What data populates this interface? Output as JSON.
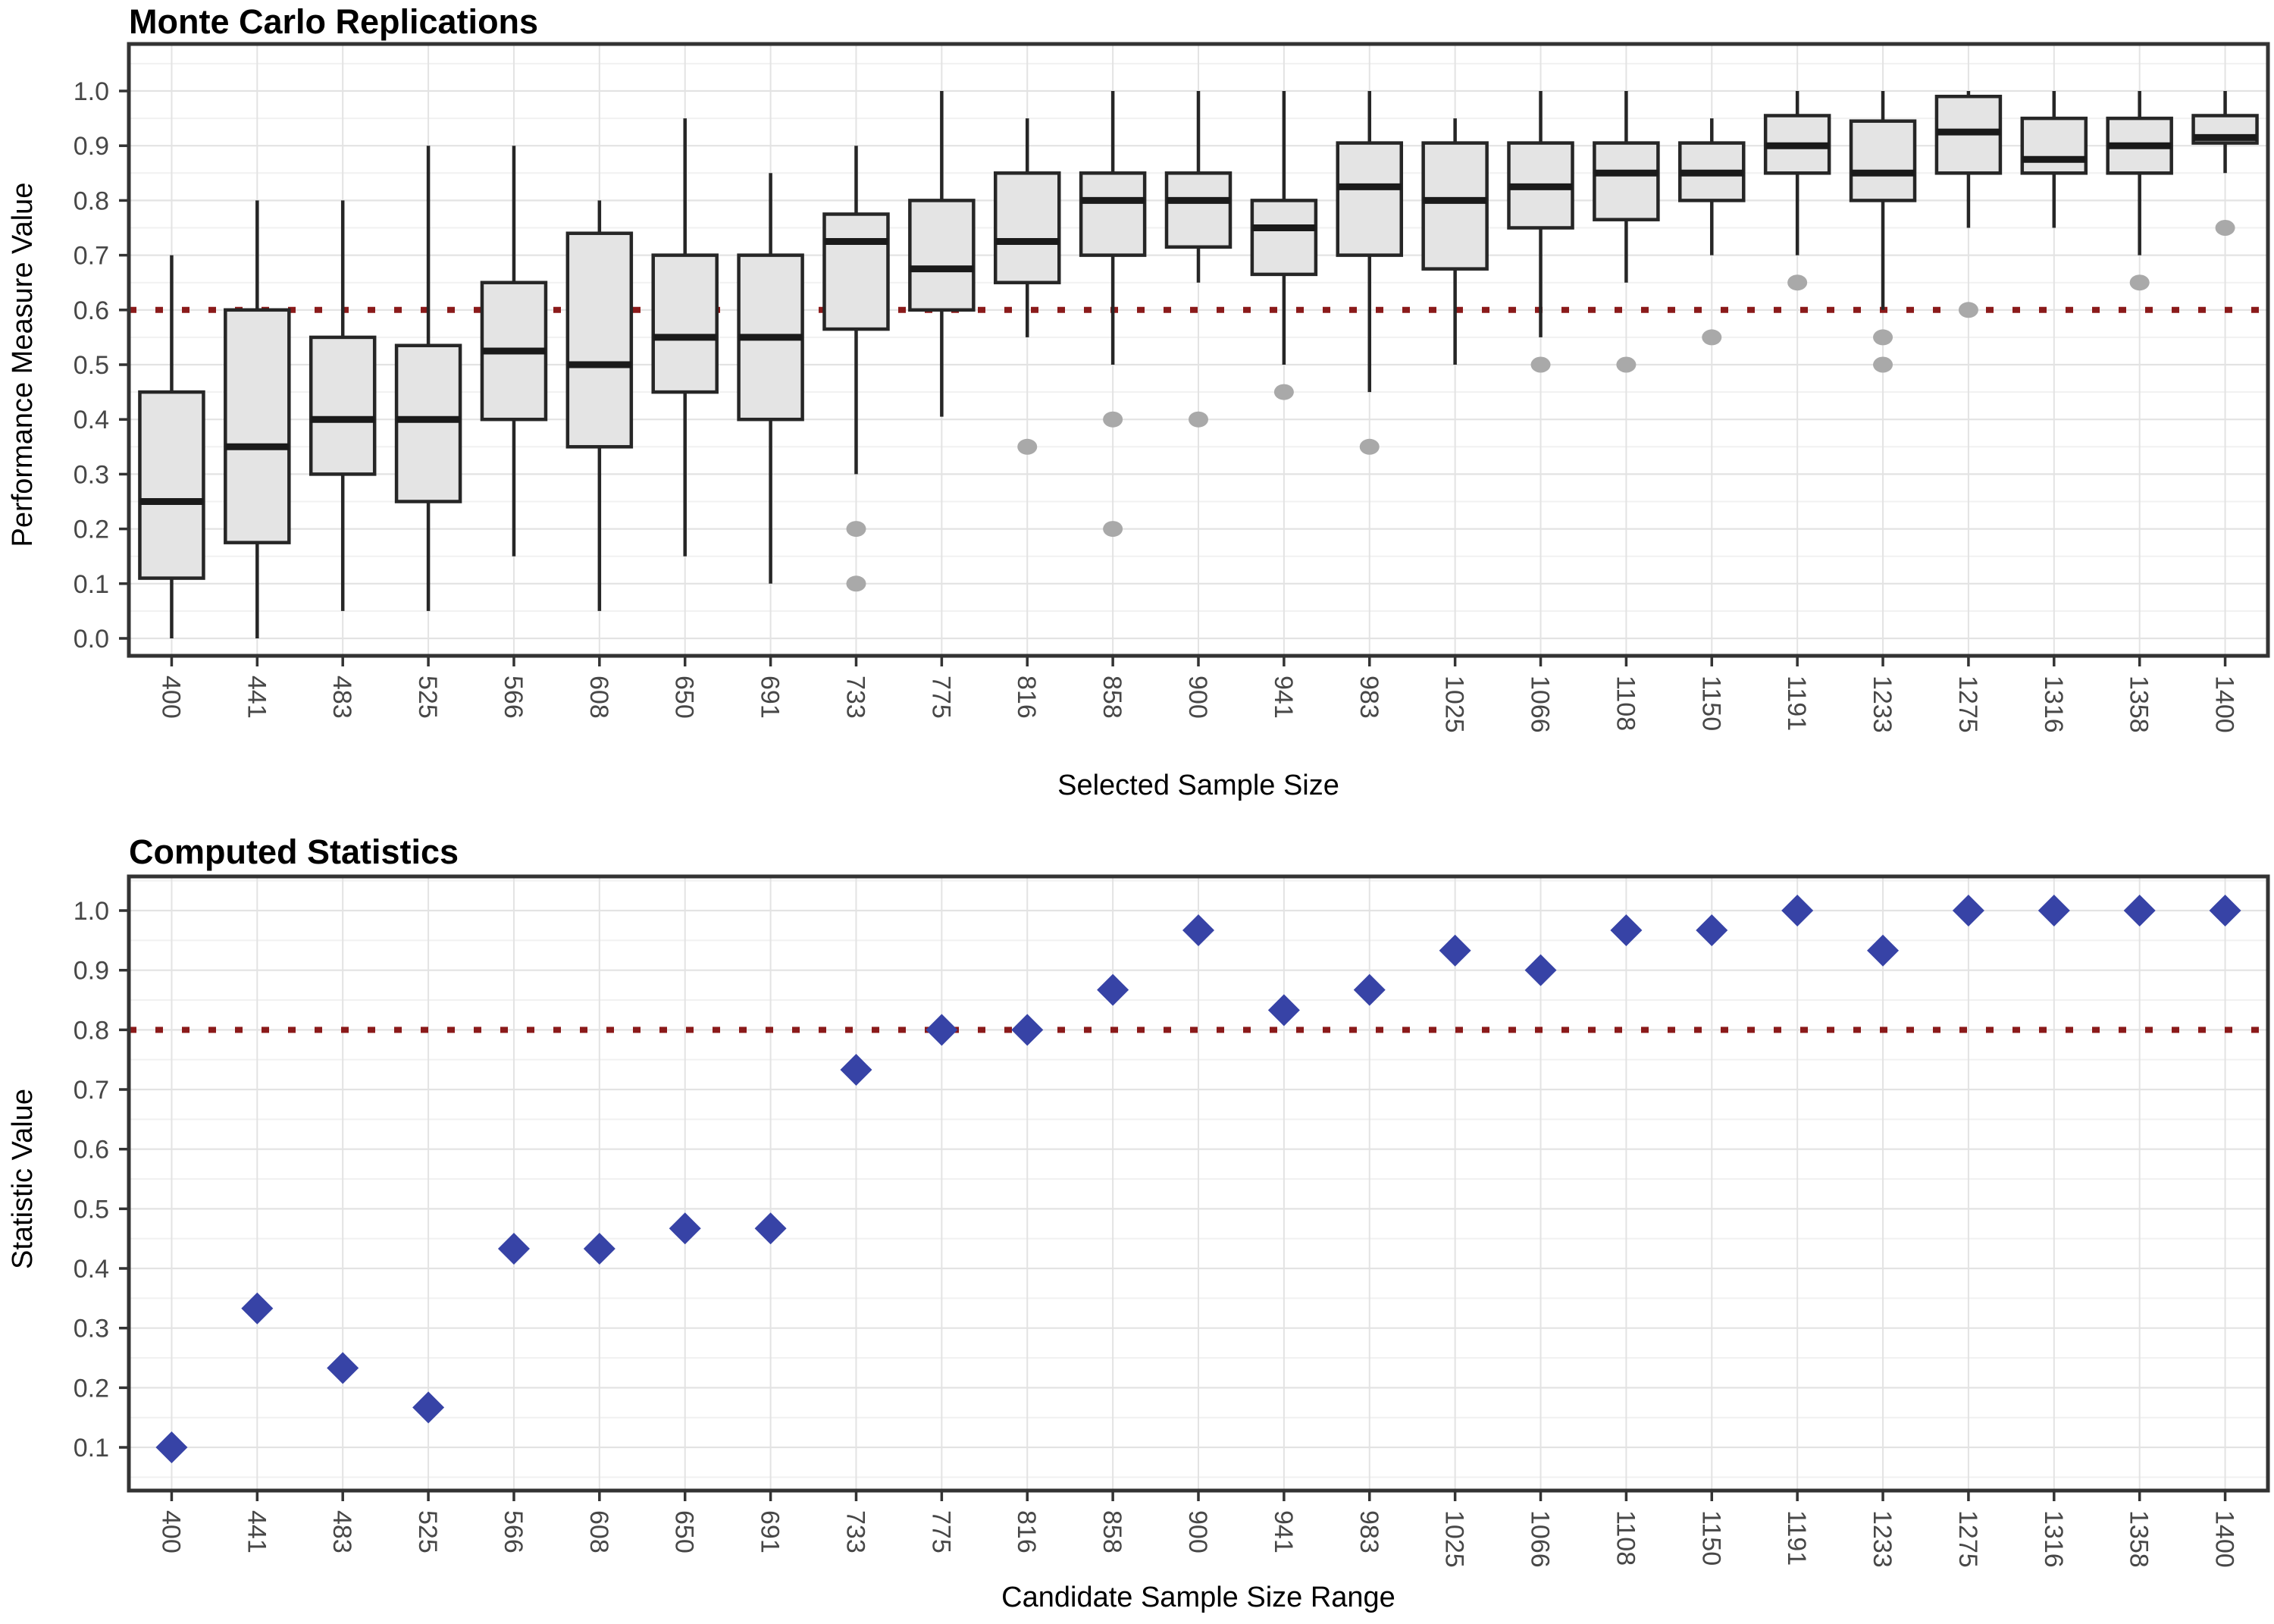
{
  "colors": {
    "background": "#FFFFFF",
    "box_fill": "#E4E4E4",
    "box_stroke": "#262626",
    "median_stroke": "#1A1A1A",
    "outlier_fill": "#A9A9A9",
    "ref_line": "#8B1A1A",
    "diamond_fill": "#3743A6",
    "grid_major": "#E3E3E3",
    "grid_minor": "#F1F1F1",
    "panel_border": "#333333",
    "axis_tick": "#333333",
    "tick_text": "#474747"
  },
  "chart_data": [
    {
      "type": "boxplot",
      "title": "Monte Carlo Replications",
      "xlabel": "Selected Sample Size",
      "ylabel": "Performance Measure Value",
      "ylim": [
        0.0,
        1.0
      ],
      "grid": true,
      "legend_position": "none",
      "y_ticks": [
        0.0,
        0.1,
        0.2,
        0.3,
        0.4,
        0.5,
        0.6,
        0.7,
        0.8,
        0.9,
        1.0
      ],
      "ref_line": {
        "value": 0.6,
        "style": "dotted",
        "color": "#8B1A1A"
      },
      "categories": [
        400,
        441,
        483,
        525,
        566,
        608,
        650,
        691,
        733,
        775,
        816,
        858,
        900,
        941,
        983,
        1025,
        1066,
        1108,
        1150,
        1191,
        1233,
        1275,
        1316,
        1358,
        1400
      ],
      "boxes": [
        {
          "x": 400,
          "low": 0.0,
          "q1": 0.11,
          "median": 0.25,
          "q3": 0.45,
          "high": 0.7,
          "outliers": []
        },
        {
          "x": 441,
          "low": 0.0,
          "q1": 0.175,
          "median": 0.35,
          "q3": 0.6,
          "high": 0.8,
          "outliers": []
        },
        {
          "x": 483,
          "low": 0.05,
          "q1": 0.3,
          "median": 0.4,
          "q3": 0.55,
          "high": 0.8,
          "outliers": []
        },
        {
          "x": 525,
          "low": 0.05,
          "q1": 0.25,
          "median": 0.4,
          "q3": 0.535,
          "high": 0.9,
          "outliers": []
        },
        {
          "x": 566,
          "low": 0.15,
          "q1": 0.4,
          "median": 0.525,
          "q3": 0.65,
          "high": 0.9,
          "outliers": []
        },
        {
          "x": 608,
          "low": 0.05,
          "q1": 0.35,
          "median": 0.5,
          "q3": 0.74,
          "high": 0.8,
          "outliers": []
        },
        {
          "x": 650,
          "low": 0.15,
          "q1": 0.45,
          "median": 0.55,
          "q3": 0.7,
          "high": 0.95,
          "outliers": []
        },
        {
          "x": 691,
          "low": 0.1,
          "q1": 0.4,
          "median": 0.55,
          "q3": 0.7,
          "high": 0.85,
          "outliers": []
        },
        {
          "x": 733,
          "low": 0.3,
          "q1": 0.565,
          "median": 0.725,
          "q3": 0.775,
          "high": 0.9,
          "outliers": [
            0.2,
            0.1
          ]
        },
        {
          "x": 775,
          "low": 0.405,
          "q1": 0.6,
          "median": 0.675,
          "q3": 0.8,
          "high": 1.0,
          "outliers": []
        },
        {
          "x": 816,
          "low": 0.55,
          "q1": 0.65,
          "median": 0.725,
          "q3": 0.85,
          "high": 0.95,
          "outliers": [
            0.35
          ]
        },
        {
          "x": 858,
          "low": 0.5,
          "q1": 0.7,
          "median": 0.8,
          "q3": 0.85,
          "high": 1.0,
          "outliers": [
            0.4,
            0.2
          ]
        },
        {
          "x": 900,
          "low": 0.65,
          "q1": 0.715,
          "median": 0.8,
          "q3": 0.85,
          "high": 1.0,
          "outliers": [
            0.4
          ]
        },
        {
          "x": 941,
          "low": 0.5,
          "q1": 0.665,
          "median": 0.75,
          "q3": 0.8,
          "high": 1.0,
          "outliers": [
            0.45
          ]
        },
        {
          "x": 983,
          "low": 0.45,
          "q1": 0.7,
          "median": 0.825,
          "q3": 0.905,
          "high": 1.0,
          "outliers": [
            0.35
          ]
        },
        {
          "x": 1025,
          "low": 0.5,
          "q1": 0.675,
          "median": 0.8,
          "q3": 0.905,
          "high": 0.95,
          "outliers": []
        },
        {
          "x": 1066,
          "low": 0.55,
          "q1": 0.75,
          "median": 0.825,
          "q3": 0.905,
          "high": 1.0,
          "outliers": [
            0.5
          ]
        },
        {
          "x": 1108,
          "low": 0.65,
          "q1": 0.765,
          "median": 0.85,
          "q3": 0.905,
          "high": 1.0,
          "outliers": [
            0.5
          ]
        },
        {
          "x": 1150,
          "low": 0.7,
          "q1": 0.8,
          "median": 0.85,
          "q3": 0.905,
          "high": 0.95,
          "outliers": [
            0.55
          ]
        },
        {
          "x": 1191,
          "low": 0.7,
          "q1": 0.85,
          "median": 0.9,
          "q3": 0.955,
          "high": 1.0,
          "outliers": [
            0.65
          ]
        },
        {
          "x": 1233,
          "low": 0.6,
          "q1": 0.8,
          "median": 0.85,
          "q3": 0.945,
          "high": 1.0,
          "outliers": [
            0.55,
            0.5
          ]
        },
        {
          "x": 1275,
          "low": 0.75,
          "q1": 0.85,
          "median": 0.925,
          "q3": 0.99,
          "high": 1.0,
          "outliers": [
            0.6
          ]
        },
        {
          "x": 1316,
          "low": 0.75,
          "q1": 0.85,
          "median": 0.875,
          "q3": 0.95,
          "high": 1.0,
          "outliers": []
        },
        {
          "x": 1358,
          "low": 0.7,
          "q1": 0.85,
          "median": 0.9,
          "q3": 0.95,
          "high": 1.0,
          "outliers": [
            0.65
          ]
        },
        {
          "x": 1400,
          "low": 0.85,
          "q1": 0.905,
          "median": 0.915,
          "q3": 0.955,
          "high": 1.0,
          "outliers": [
            0.75
          ]
        }
      ]
    },
    {
      "type": "scatter",
      "title": "Computed Statistics",
      "xlabel": "Candidate Sample Size Range",
      "ylabel": "Statistic Value",
      "ylim": [
        0.05,
        1.05
      ],
      "grid": true,
      "legend_position": "none",
      "marker": "diamond",
      "y_ticks": [
        0.1,
        0.2,
        0.3,
        0.4,
        0.5,
        0.6,
        0.7,
        0.8,
        0.9,
        1.0
      ],
      "ref_line": {
        "value": 0.8,
        "style": "dotted",
        "color": "#8B1A1A"
      },
      "categories": [
        400,
        441,
        483,
        525,
        566,
        608,
        650,
        691,
        733,
        775,
        816,
        858,
        900,
        941,
        983,
        1025,
        1066,
        1108,
        1150,
        1191,
        1233,
        1275,
        1316,
        1358,
        1400
      ],
      "values": [
        0.1,
        0.333,
        0.233,
        0.167,
        0.433,
        0.433,
        0.467,
        0.467,
        0.733,
        0.8,
        0.8,
        0.867,
        0.967,
        0.833,
        0.867,
        0.933,
        0.9,
        0.967,
        0.967,
        1.0,
        0.933,
        1.0,
        1.0,
        1.0,
        1.0
      ]
    }
  ]
}
